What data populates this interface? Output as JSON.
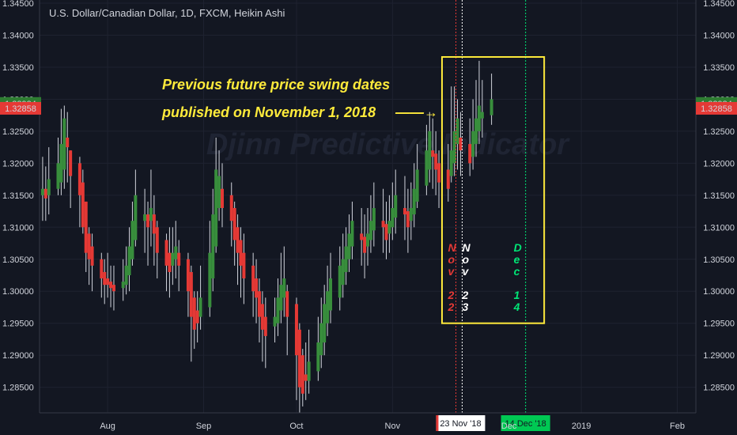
{
  "chart_data": {
    "type": "candlestick",
    "title": "U.S. Dollar/Canadian Dollar, 1D, FXCM, Heikin Ashi",
    "watermark": "Djinn Predictive Indicator",
    "y_ticks": [
      "1.28500",
      "1.29000",
      "1.29500",
      "1.30000",
      "1.30500",
      "1.31000",
      "1.31500",
      "1.32000",
      "1.32500",
      "1.33000",
      "1.33500",
      "1.34000",
      "1.34500"
    ],
    "y_tick_values": [
      1.285,
      1.29,
      1.295,
      1.3,
      1.305,
      1.31,
      1.315,
      1.32,
      1.325,
      1.33,
      1.335,
      1.34,
      1.345
    ],
    "ylim": [
      1.281,
      1.3455
    ],
    "x_ticks": [
      "Aug",
      "Sep",
      "Oct",
      "Nov",
      "2019",
      "Feb"
    ],
    "x_tick_dates": [
      "2018-08-01",
      "2018-09-01",
      "2018-10-01",
      "2018-11-01",
      "2019-01-01",
      "2019-02-01"
    ],
    "xlim": [
      "2018-07-10",
      "2019-02-07"
    ],
    "price_labels": {
      "upper": {
        "text": "1.32934",
        "value": 1.32934,
        "color": "#2e7d32"
      },
      "lower": {
        "text": "1.32858",
        "value": 1.32858,
        "color": "#e53935"
      }
    },
    "up_color": "#388e3c",
    "down_color": "#e53935",
    "wick_color": "#d1d4dc",
    "candles": [
      {
        "date": "2018-07-11",
        "o": 1.315,
        "c": 1.316,
        "h": 1.321,
        "l": 1.311
      },
      {
        "date": "2018-07-12",
        "o": 1.316,
        "c": 1.3145,
        "h": 1.3195,
        "l": 1.311
      },
      {
        "date": "2018-07-13",
        "o": 1.315,
        "c": 1.3175,
        "h": 1.3225,
        "l": 1.312
      },
      {
        "date": "2018-07-16",
        "o": 1.316,
        "c": 1.32,
        "h": 1.324,
        "l": 1.315
      },
      {
        "date": "2018-07-17",
        "o": 1.317,
        "c": 1.323,
        "h": 1.3285,
        "l": 1.315
      },
      {
        "date": "2018-07-18",
        "o": 1.319,
        "c": 1.327,
        "h": 1.329,
        "l": 1.316
      },
      {
        "date": "2018-07-19",
        "o": 1.324,
        "c": 1.3225,
        "h": 1.328,
        "l": 1.317
      },
      {
        "date": "2018-07-20",
        "o": 1.322,
        "c": 1.318,
        "h": 1.322,
        "l": 1.313
      },
      {
        "date": "2018-07-23",
        "o": 1.32,
        "c": 1.315,
        "h": 1.321,
        "l": 1.31
      },
      {
        "date": "2018-07-24",
        "o": 1.317,
        "c": 1.31,
        "h": 1.319,
        "l": 1.309
      },
      {
        "date": "2018-07-25",
        "o": 1.314,
        "c": 1.306,
        "h": 1.314,
        "l": 1.303
      },
      {
        "date": "2018-07-26",
        "o": 1.309,
        "c": 1.305,
        "h": 1.31,
        "l": 1.301
      },
      {
        "date": "2018-07-27",
        "o": 1.307,
        "c": 1.304,
        "h": 1.309,
        "l": 1.3
      },
      {
        "date": "2018-07-30",
        "o": 1.305,
        "c": 1.302,
        "h": 1.306,
        "l": 1.299
      },
      {
        "date": "2018-07-31",
        "o": 1.303,
        "c": 1.301,
        "h": 1.305,
        "l": 1.298
      },
      {
        "date": "2018-08-01",
        "o": 1.302,
        "c": 1.301,
        "h": 1.306,
        "l": 1.299
      },
      {
        "date": "2018-08-02",
        "o": 1.3015,
        "c": 1.3005,
        "h": 1.304,
        "l": 1.2975
      },
      {
        "date": "2018-08-03",
        "o": 1.301,
        "c": 1.3,
        "h": 1.304,
        "l": 1.297
      },
      {
        "date": "2018-08-06",
        "o": 1.3005,
        "c": 1.3015,
        "h": 1.305,
        "l": 1.2985
      },
      {
        "date": "2018-08-07",
        "o": 1.301,
        "c": 1.304,
        "h": 1.307,
        "l": 1.2995
      },
      {
        "date": "2018-08-08",
        "o": 1.3025,
        "c": 1.307,
        "h": 1.31,
        "l": 1.3
      },
      {
        "date": "2018-08-09",
        "o": 1.305,
        "c": 1.311,
        "h": 1.314,
        "l": 1.304
      },
      {
        "date": "2018-08-10",
        "o": 1.308,
        "c": 1.315,
        "h": 1.319,
        "l": 1.307
      },
      {
        "date": "2018-08-13",
        "o": 1.311,
        "c": 1.312,
        "h": 1.316,
        "l": 1.306
      },
      {
        "date": "2018-08-14",
        "o": 1.312,
        "c": 1.31,
        "h": 1.314,
        "l": 1.304
      },
      {
        "date": "2018-08-15",
        "o": 1.311,
        "c": 1.313,
        "h": 1.319,
        "l": 1.307
      },
      {
        "date": "2018-08-16",
        "o": 1.312,
        "c": 1.309,
        "h": 1.315,
        "l": 1.304
      },
      {
        "date": "2018-08-17",
        "o": 1.31,
        "c": 1.306,
        "h": 1.311,
        "l": 1.302
      },
      {
        "date": "2018-08-20",
        "o": 1.308,
        "c": 1.304,
        "h": 1.309,
        "l": 1.3
      },
      {
        "date": "2018-08-21",
        "o": 1.306,
        "c": 1.303,
        "h": 1.31,
        "l": 1.299
      },
      {
        "date": "2018-08-22",
        "o": 1.304,
        "c": 1.306,
        "h": 1.31,
        "l": 1.301
      },
      {
        "date": "2018-08-23",
        "o": 1.305,
        "c": 1.307,
        "h": 1.311,
        "l": 1.302
      },
      {
        "date": "2018-08-24",
        "o": 1.306,
        "c": 1.304,
        "h": 1.308,
        "l": 1.3
      },
      {
        "date": "2018-08-27",
        "o": 1.305,
        "c": 1.3,
        "h": 1.306,
        "l": 1.296
      },
      {
        "date": "2018-08-28",
        "o": 1.303,
        "c": 1.296,
        "h": 1.304,
        "l": 1.289
      },
      {
        "date": "2018-08-29",
        "o": 1.299,
        "c": 1.294,
        "h": 1.3,
        "l": 1.291
      },
      {
        "date": "2018-08-30",
        "o": 1.297,
        "c": 1.295,
        "h": 1.3,
        "l": 1.292
      },
      {
        "date": "2018-08-31",
        "o": 1.296,
        "c": 1.299,
        "h": 1.304,
        "l": 1.294
      },
      {
        "date": "2018-09-03",
        "o": 1.2975,
        "c": 1.306,
        "h": 1.311,
        "l": 1.296
      },
      {
        "date": "2018-09-04",
        "o": 1.302,
        "c": 1.312,
        "h": 1.316,
        "l": 1.3
      },
      {
        "date": "2018-09-05",
        "o": 1.307,
        "c": 1.319,
        "h": 1.324,
        "l": 1.306
      },
      {
        "date": "2018-09-06",
        "o": 1.313,
        "c": 1.318,
        "h": 1.322,
        "l": 1.311
      },
      {
        "date": "2018-09-07",
        "o": 1.316,
        "c": 1.313,
        "h": 1.32,
        "l": 1.31
      },
      {
        "date": "2018-09-10",
        "o": 1.315,
        "c": 1.311,
        "h": 1.317,
        "l": 1.307
      },
      {
        "date": "2018-09-11",
        "o": 1.313,
        "c": 1.308,
        "h": 1.314,
        "l": 1.304
      },
      {
        "date": "2018-09-12",
        "o": 1.31,
        "c": 1.306,
        "h": 1.312,
        "l": 1.301
      },
      {
        "date": "2018-09-13",
        "o": 1.308,
        "c": 1.304,
        "h": 1.31,
        "l": 1.299
      },
      {
        "date": "2018-09-14",
        "o": 1.306,
        "c": 1.302,
        "h": 1.309,
        "l": 1.298
      },
      {
        "date": "2018-09-17",
        "o": 1.304,
        "c": 1.3,
        "h": 1.306,
        "l": 1.296
      },
      {
        "date": "2018-09-18",
        "o": 1.302,
        "c": 1.299,
        "h": 1.305,
        "l": 1.295
      },
      {
        "date": "2018-09-19",
        "o": 1.3,
        "c": 1.296,
        "h": 1.302,
        "l": 1.292
      },
      {
        "date": "2018-09-20",
        "o": 1.298,
        "c": 1.294,
        "h": 1.3,
        "l": 1.289
      },
      {
        "date": "2018-09-21",
        "o": 1.296,
        "c": 1.293,
        "h": 1.299,
        "l": 1.288
      },
      {
        "date": "2018-09-24",
        "o": 1.2945,
        "c": 1.296,
        "h": 1.299,
        "l": 1.292
      },
      {
        "date": "2018-09-25",
        "o": 1.295,
        "c": 1.299,
        "h": 1.302,
        "l": 1.293
      },
      {
        "date": "2018-09-26",
        "o": 1.297,
        "c": 1.301,
        "h": 1.306,
        "l": 1.295
      },
      {
        "date": "2018-09-27",
        "o": 1.299,
        "c": 1.302,
        "h": 1.307,
        "l": 1.296
      },
      {
        "date": "2018-09-28",
        "o": 1.3,
        "c": 1.296,
        "h": 1.301,
        "l": 1.29
      },
      {
        "date": "2018-10-01",
        "o": 1.298,
        "c": 1.29,
        "h": 1.299,
        "l": 1.283
      },
      {
        "date": "2018-10-02",
        "o": 1.294,
        "c": 1.285,
        "h": 1.295,
        "l": 1.281
      },
      {
        "date": "2018-10-03",
        "o": 1.29,
        "c": 1.284,
        "h": 1.291,
        "l": 1.282
      },
      {
        "date": "2018-10-04",
        "o": 1.287,
        "c": 1.286,
        "h": 1.292,
        "l": 1.283
      },
      {
        "date": "2018-10-05",
        "o": 1.286,
        "c": 1.289,
        "h": 1.294,
        "l": 1.284
      },
      {
        "date": "2018-10-08",
        "o": 1.2875,
        "c": 1.292,
        "h": 1.296,
        "l": 1.286
      },
      {
        "date": "2018-10-09",
        "o": 1.29,
        "c": 1.295,
        "h": 1.299,
        "l": 1.288
      },
      {
        "date": "2018-10-10",
        "o": 1.292,
        "c": 1.298,
        "h": 1.301,
        "l": 1.29
      },
      {
        "date": "2018-10-11",
        "o": 1.295,
        "c": 1.3,
        "h": 1.304,
        "l": 1.293
      },
      {
        "date": "2018-10-12",
        "o": 1.297,
        "c": 1.302,
        "h": 1.306,
        "l": 1.295
      },
      {
        "date": "2018-10-15",
        "o": 1.299,
        "c": 1.304,
        "h": 1.307,
        "l": 1.297
      },
      {
        "date": "2018-10-16",
        "o": 1.301,
        "c": 1.305,
        "h": 1.309,
        "l": 1.299
      },
      {
        "date": "2018-10-17",
        "o": 1.303,
        "c": 1.307,
        "h": 1.31,
        "l": 1.301
      },
      {
        "date": "2018-10-18",
        "o": 1.305,
        "c": 1.309,
        "h": 1.312,
        "l": 1.303
      },
      {
        "date": "2018-10-19",
        "o": 1.307,
        "c": 1.311,
        "h": 1.314,
        "l": 1.305
      },
      {
        "date": "2018-10-22",
        "o": 1.309,
        "c": 1.308,
        "h": 1.313,
        "l": 1.304
      },
      {
        "date": "2018-10-23",
        "o": 1.3085,
        "c": 1.306,
        "h": 1.312,
        "l": 1.302
      },
      {
        "date": "2018-10-24",
        "o": 1.307,
        "c": 1.309,
        "h": 1.313,
        "l": 1.304
      },
      {
        "date": "2018-10-25",
        "o": 1.308,
        "c": 1.311,
        "h": 1.315,
        "l": 1.306
      },
      {
        "date": "2018-10-26",
        "o": 1.3095,
        "c": 1.313,
        "h": 1.317,
        "l": 1.307
      },
      {
        "date": "2018-10-29",
        "o": 1.311,
        "c": 1.31,
        "h": 1.316,
        "l": 1.306
      },
      {
        "date": "2018-10-30",
        "o": 1.3105,
        "c": 1.308,
        "h": 1.314,
        "l": 1.305
      },
      {
        "date": "2018-10-31",
        "o": 1.309,
        "c": 1.311,
        "h": 1.315,
        "l": 1.306
      },
      {
        "date": "2018-11-01",
        "o": 1.31,
        "c": 1.313,
        "h": 1.317,
        "l": 1.308
      },
      {
        "date": "2018-11-02",
        "o": 1.3115,
        "c": 1.315,
        "h": 1.319,
        "l": 1.309
      },
      {
        "date": "2018-11-05",
        "o": 1.313,
        "c": 1.312,
        "h": 1.318,
        "l": 1.308
      },
      {
        "date": "2018-11-06",
        "o": 1.3125,
        "c": 1.31,
        "h": 1.316,
        "l": 1.306
      },
      {
        "date": "2018-11-07",
        "o": 1.311,
        "c": 1.313,
        "h": 1.317,
        "l": 1.308
      },
      {
        "date": "2018-11-08",
        "o": 1.312,
        "c": 1.316,
        "h": 1.32,
        "l": 1.31
      },
      {
        "date": "2018-11-09",
        "o": 1.314,
        "c": 1.319,
        "h": 1.323,
        "l": 1.313
      },
      {
        "date": "2018-11-12",
        "o": 1.3165,
        "c": 1.322,
        "h": 1.326,
        "l": 1.315
      },
      {
        "date": "2018-11-13",
        "o": 1.319,
        "c": 1.325,
        "h": 1.328,
        "l": 1.317
      },
      {
        "date": "2018-11-14",
        "o": 1.322,
        "c": 1.321,
        "h": 1.327,
        "l": 1.316
      },
      {
        "date": "2018-11-15",
        "o": 1.3215,
        "c": 1.319,
        "h": 1.325,
        "l": 1.315
      },
      {
        "date": "2018-11-16",
        "o": 1.32,
        "c": 1.317,
        "h": 1.322,
        "l": 1.313
      },
      {
        "date": "2018-11-19",
        "o": 1.319,
        "c": 1.316,
        "h": 1.323,
        "l": 1.314
      },
      {
        "date": "2018-11-20",
        "o": 1.318,
        "c": 1.322,
        "h": 1.332,
        "l": 1.317
      },
      {
        "date": "2018-11-21",
        "o": 1.32,
        "c": 1.325,
        "h": 1.332,
        "l": 1.318
      },
      {
        "date": "2018-11-22",
        "o": 1.323,
        "c": 1.327,
        "h": 1.33,
        "l": 1.319
      },
      {
        "date": "2018-11-23",
        "o": 1.324,
        "c": 1.322,
        "h": 1.328,
        "l": 1.318
      },
      {
        "date": "2018-11-26",
        "o": 1.323,
        "c": 1.32,
        "h": 1.327,
        "l": 1.318
      },
      {
        "date": "2018-11-27",
        "o": 1.321,
        "c": 1.325,
        "h": 1.33,
        "l": 1.319
      },
      {
        "date": "2018-11-28",
        "o": 1.323,
        "c": 1.327,
        "h": 1.333,
        "l": 1.321
      },
      {
        "date": "2018-11-29",
        "o": 1.325,
        "c": 1.329,
        "h": 1.336,
        "l": 1.323
      },
      {
        "date": "2018-11-30",
        "o": 1.327,
        "c": 1.328,
        "h": 1.333,
        "l": 1.324
      },
      {
        "date": "2018-12-03",
        "o": 1.3275,
        "c": 1.33,
        "h": 1.334,
        "l": 1.326
      }
    ]
  },
  "annotation": {
    "line1": "Previous future price swing dates",
    "line2": "published on November 1, 2018",
    "arrow": "——→"
  },
  "vertical_markers": [
    {
      "date": "2018-11-22",
      "color": "#e53935",
      "letters": [
        "N",
        "o",
        "v",
        "",
        "2",
        "2"
      ]
    },
    {
      "date": "2018-11-23",
      "color": "#ffffff",
      "letters": [
        "N",
        "o",
        "v",
        "",
        "2",
        "3"
      ]
    },
    {
      "date": "2018-12-14",
      "color": "#00e676",
      "letters": [
        "D",
        "e",
        "c",
        "",
        "1",
        "4"
      ]
    }
  ],
  "badges": [
    {
      "text": "23 Nov '18",
      "date": "2018-11-23",
      "bg": "#ffffff",
      "fg": "#131722",
      "accent": "#e53935"
    },
    {
      "text": "14 Dec '18",
      "date": "2018-12-14",
      "bg": "#00c853",
      "fg": "#131722",
      "accent": "#00c853"
    }
  ],
  "hidden_tick_fragment": "Dec",
  "box_color": "#ffeb3b",
  "box_range": {
    "date_from": "2018-11-17",
    "date_to": "2018-12-20",
    "y_from": 1.295,
    "y_to": 1.3366
  }
}
